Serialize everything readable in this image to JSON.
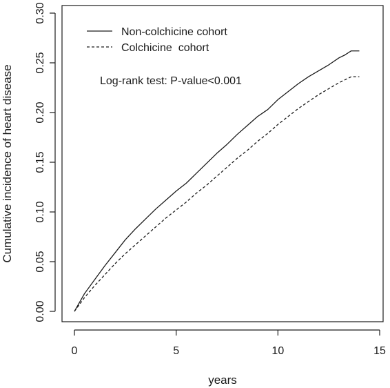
{
  "chart_data": {
    "type": "line",
    "title": "",
    "xlabel": "years",
    "ylabel": "Cumulative incidence of heart disease",
    "xlim": [
      0,
      15
    ],
    "ylim": [
      0,
      0.3
    ],
    "x_ticks": [
      "0",
      "5",
      "10",
      "15"
    ],
    "y_ticks": [
      "0.00",
      "0.05",
      "0.10",
      "0.15",
      "0.20",
      "0.25",
      "0.30"
    ],
    "grid": false,
    "legend_position": "top-left",
    "annotation": "Log-rank test: P-value<0.001",
    "series": [
      {
        "name": "Non-colchicine cohort",
        "line_style": "solid",
        "color": "#1a1a1a",
        "x": [
          0,
          0.5,
          1,
          1.5,
          2,
          2.5,
          3,
          3.5,
          4,
          4.5,
          5,
          5.5,
          6,
          6.5,
          7,
          7.5,
          8,
          8.5,
          9,
          9.5,
          10,
          10.5,
          11,
          11.5,
          12,
          12.5,
          13,
          13.3,
          13.6,
          14.0
        ],
        "y": [
          0,
          0.018,
          0.032,
          0.046,
          0.059,
          0.072,
          0.083,
          0.093,
          0.103,
          0.112,
          0.121,
          0.129,
          0.139,
          0.149,
          0.159,
          0.168,
          0.178,
          0.187,
          0.196,
          0.203,
          0.213,
          0.221,
          0.229,
          0.236,
          0.242,
          0.248,
          0.255,
          0.258,
          0.262,
          0.262
        ]
      },
      {
        "name": "Colchicine  cohort",
        "line_style": "dashed",
        "color": "#1a1a1a",
        "x": [
          0,
          0.5,
          1,
          1.5,
          2,
          2.5,
          3,
          3.5,
          4,
          4.5,
          5,
          5.5,
          6,
          6.5,
          7,
          7.5,
          8,
          8.5,
          9,
          9.5,
          10,
          10.5,
          11,
          11.5,
          12,
          12.5,
          13,
          13.3,
          13.6,
          14.0
        ],
        "y": [
          0,
          0.014,
          0.026,
          0.037,
          0.048,
          0.058,
          0.067,
          0.076,
          0.085,
          0.094,
          0.102,
          0.11,
          0.119,
          0.127,
          0.136,
          0.145,
          0.154,
          0.162,
          0.171,
          0.179,
          0.188,
          0.196,
          0.204,
          0.211,
          0.218,
          0.224,
          0.23,
          0.233,
          0.236,
          0.236
        ]
      }
    ]
  }
}
